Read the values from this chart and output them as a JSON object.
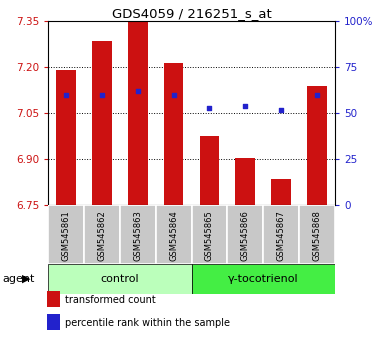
{
  "title": "GDS4059 / 216251_s_at",
  "samples": [
    "GSM545861",
    "GSM545862",
    "GSM545863",
    "GSM545864",
    "GSM545865",
    "GSM545866",
    "GSM545867",
    "GSM545868"
  ],
  "bar_values": [
    7.19,
    7.285,
    7.348,
    7.215,
    6.975,
    6.905,
    6.835,
    7.14
  ],
  "percentile_values": [
    60,
    60,
    62,
    60,
    53,
    54,
    52,
    60
  ],
  "bar_color": "#cc1111",
  "dot_color": "#2222cc",
  "ylim_left": [
    6.75,
    7.35
  ],
  "ylim_right": [
    0,
    100
  ],
  "yticks_left": [
    6.75,
    6.9,
    7.05,
    7.2,
    7.35
  ],
  "yticks_right": [
    0,
    25,
    50,
    75,
    100
  ],
  "ytick_labels_right": [
    "0",
    "25",
    "50",
    "75",
    "100%"
  ],
  "gridlines": [
    6.9,
    7.05,
    7.2
  ],
  "control_label": "control",
  "treatment_label": "γ-tocotrienol",
  "agent_label": "agent",
  "legend_bar_label": "transformed count",
  "legend_dot_label": "percentile rank within the sample",
  "bg_plot": "#ffffff",
  "bg_label_row": "#c8c8c8",
  "bg_control": "#bbffbb",
  "bg_treatment": "#44ee44",
  "bar_width": 0.55,
  "base_value": 6.75
}
